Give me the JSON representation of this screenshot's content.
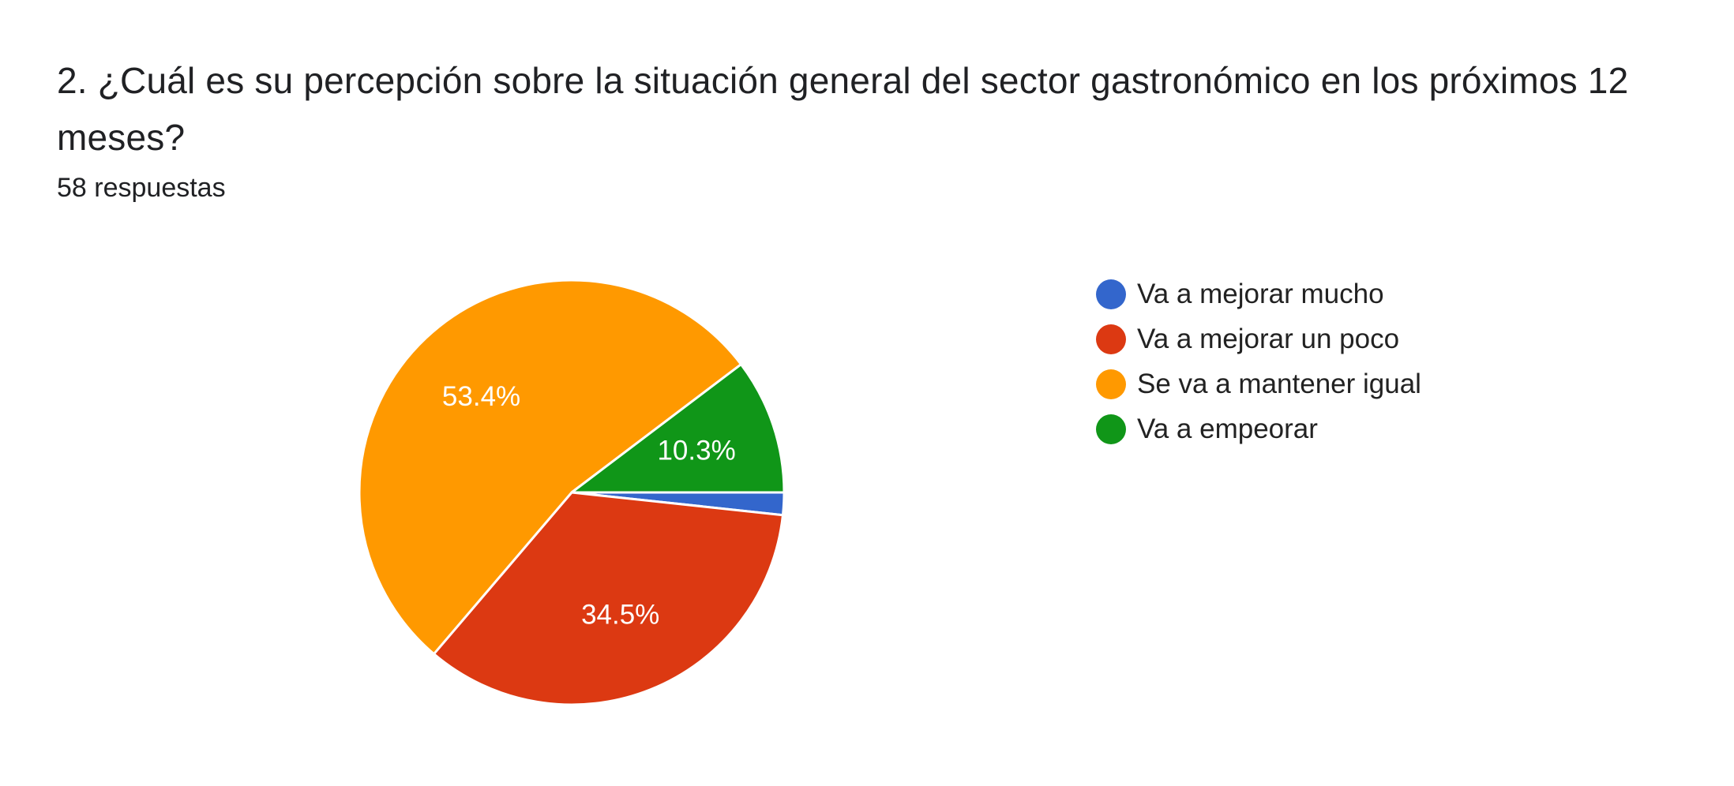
{
  "question": {
    "title": "2. ¿Cuál es su percepción sobre la situación general del sector gastronómico en los próximos 12 meses?",
    "responses": "58 respuestas"
  },
  "chart_data": {
    "type": "pie",
    "title": "2. ¿Cuál es su percepción sobre la situación general del sector gastronómico en los próximos 12 meses?",
    "categories": [
      "Va a mejorar mucho",
      "Va a mejorar un poco",
      "Se va a mantener igual",
      "Va a empeorar"
    ],
    "values": [
      1.7,
      34.5,
      53.4,
      10.3
    ],
    "data_labels": [
      "",
      "34.5%",
      "53.4%",
      "10.3%"
    ],
    "colors": [
      "#3366cc",
      "#dc3912",
      "#ff9900",
      "#109618"
    ],
    "start_angle": "3 o'clock, clockwise",
    "legend_position": "right"
  }
}
